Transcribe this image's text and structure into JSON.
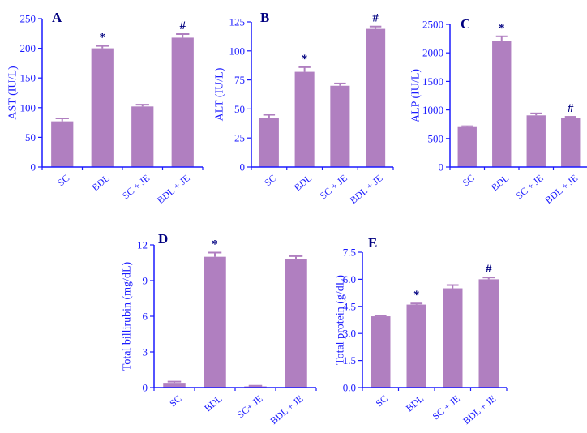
{
  "colors": {
    "bar": "#b07fc0",
    "axis": "#1a1aff",
    "text": "#1a1aff",
    "panel_label": "#000080",
    "marker": "#000080"
  },
  "chart_data": [
    {
      "type": "bar",
      "panel": "A",
      "ylabel": "AST (IU/L)",
      "categories": [
        "SC",
        "BDL",
        "SC + JE",
        "BDL + JE"
      ],
      "values": [
        77,
        200,
        102,
        218
      ],
      "errors": [
        5,
        4,
        3,
        6
      ],
      "markers": [
        "",
        "*",
        "",
        "#"
      ],
      "ylim": [
        0,
        250
      ],
      "yticks": [
        0,
        50,
        100,
        150,
        200,
        250
      ]
    },
    {
      "type": "bar",
      "panel": "B",
      "ylabel": "ALT (IU/L)",
      "categories": [
        "SC",
        "BDL",
        "SC + JE",
        "BDL + JE"
      ],
      "values": [
        42,
        82,
        70,
        119
      ],
      "errors": [
        3,
        4,
        2,
        2
      ],
      "markers": [
        "",
        "*",
        "",
        "#"
      ],
      "ylim": [
        0,
        125
      ],
      "yticks": [
        0,
        25,
        50,
        75,
        100,
        125
      ]
    },
    {
      "type": "bar",
      "panel": "C",
      "ylabel": "ALP (IU/L)",
      "categories": [
        "SC",
        "BDL",
        "SC + JE",
        "BDL + JE"
      ],
      "values": [
        700,
        2210,
        905,
        855
      ],
      "errors": [
        15,
        80,
        35,
        25
      ],
      "markers": [
        "",
        "*",
        "",
        "#"
      ],
      "ylim": [
        0,
        2500
      ],
      "yticks": [
        0,
        500,
        1000,
        1500,
        2000,
        2500
      ]
    },
    {
      "type": "bar",
      "panel": "D",
      "ylabel": "Total billirubin (mg/dL)",
      "categories": [
        "SC",
        "BDL",
        "SC+ JE",
        "BDL + JE"
      ],
      "values": [
        0.4,
        11.0,
        0.1,
        10.8
      ],
      "errors": [
        0.1,
        0.35,
        0.05,
        0.25
      ],
      "markers": [
        "",
        "*",
        "",
        ""
      ],
      "ylim": [
        0,
        12
      ],
      "yticks": [
        0,
        3,
        6,
        9,
        12
      ]
    },
    {
      "type": "bar",
      "panel": "E",
      "ylabel": "Total protein (g/dL)",
      "categories": [
        "SC",
        "BDL",
        "SC + JE",
        "BDL + JE"
      ],
      "values": [
        3.95,
        4.6,
        5.5,
        6.0
      ],
      "errors": [
        0.04,
        0.06,
        0.18,
        0.1
      ],
      "markers": [
        "",
        "*",
        "",
        "#"
      ],
      "ylim": [
        0,
        7.5
      ],
      "yticks": [
        "0.0",
        "1.5",
        "3.0",
        "4.5",
        "6.0",
        "7.5"
      ]
    }
  ]
}
